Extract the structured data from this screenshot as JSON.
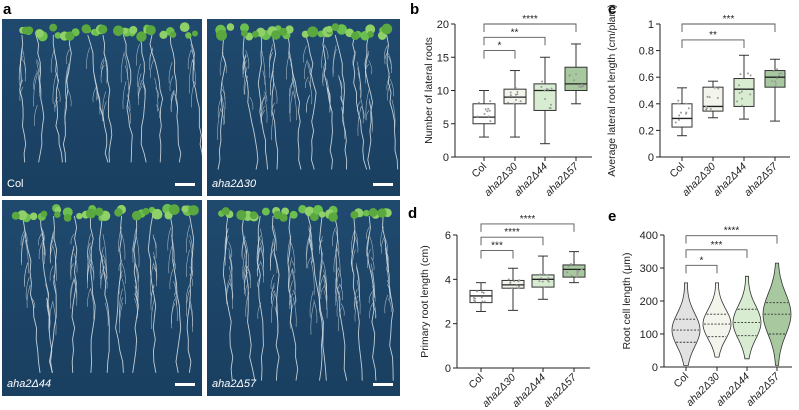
{
  "panel_labels": [
    "a",
    "b",
    "c",
    "d",
    "e"
  ],
  "photos": [
    {
      "genotype": "Col",
      "italic": false
    },
    {
      "genotype": "aha2Δ30",
      "italic": true
    },
    {
      "genotype": "aha2Δ44",
      "italic": true
    },
    {
      "genotype": "aha2Δ57",
      "italic": true
    }
  ],
  "colors": {
    "Col": "#ffffff",
    "aha2Δ30": "#f3f5ec",
    "aha2Δ44": "#d7ecd0",
    "aha2Δ57": "#a8c8a0",
    "photo_bg": "#1d4567"
  },
  "chart_data": [
    {
      "panel": "b",
      "type": "box",
      "ylabel": "Number of lateral roots",
      "categories": [
        "Col",
        "aha2Δ30",
        "aha2Δ44",
        "aha2Δ57"
      ],
      "ylim": [
        0,
        20
      ],
      "yticks": [
        "0",
        "5",
        "10",
        "15",
        "20"
      ],
      "ytick_values": [
        0,
        5,
        10,
        15,
        20
      ],
      "series": [
        {
          "name": "Col",
          "min": 3,
          "q1": 5,
          "median": 6,
          "q3": 8,
          "max": 10
        },
        {
          "name": "aha2Δ30",
          "min": 3,
          "q1": 8,
          "median": 9,
          "q3": 10.2,
          "max": 13
        },
        {
          "name": "aha2Δ44",
          "min": 2,
          "q1": 7,
          "median": 10,
          "q3": 11,
          "max": 15
        },
        {
          "name": "aha2Δ57",
          "min": 8,
          "q1": 10,
          "median": 11,
          "q3": 13.5,
          "max": 17
        }
      ],
      "significance": [
        {
          "from": "Col",
          "to": "aha2Δ30",
          "label": "*",
          "y": 16
        },
        {
          "from": "Col",
          "to": "aha2Δ44",
          "label": "**",
          "y": 18
        },
        {
          "from": "Col",
          "to": "aha2Δ57",
          "label": "****",
          "y": 20
        }
      ]
    },
    {
      "panel": "c",
      "type": "box",
      "ylabel": "Average lateral root length (cm/plant)",
      "categories": [
        "Col",
        "aha2Δ30",
        "aha2Δ44",
        "aha2Δ57"
      ],
      "ylim": [
        0,
        1
      ],
      "yticks": [
        "0",
        "0.2",
        "0.4",
        "0.6",
        "0.8",
        "1"
      ],
      "ytick_values": [
        0,
        0.2,
        0.4,
        0.6,
        0.8,
        1
      ],
      "series": [
        {
          "name": "Col",
          "min": 0.16,
          "q1": 0.225,
          "median": 0.29,
          "q3": 0.4,
          "max": 0.52
        },
        {
          "name": "aha2Δ30",
          "min": 0.295,
          "q1": 0.345,
          "median": 0.38,
          "q3": 0.525,
          "max": 0.57
        },
        {
          "name": "aha2Δ44",
          "min": 0.285,
          "q1": 0.38,
          "median": 0.51,
          "q3": 0.59,
          "max": 0.765
        },
        {
          "name": "aha2Δ57",
          "min": 0.27,
          "q1": 0.525,
          "median": 0.6,
          "q3": 0.65,
          "max": 0.735
        }
      ],
      "significance": [
        {
          "from": "Col",
          "to": "aha2Δ44",
          "label": "**",
          "y": 0.88
        },
        {
          "from": "Col",
          "to": "aha2Δ57",
          "label": "***",
          "y": 1.0
        }
      ]
    },
    {
      "panel": "d",
      "type": "box",
      "ylabel": "Primary root length (cm)",
      "categories": [
        "Col",
        "aha2Δ30",
        "aha2Δ44",
        "aha2Δ57"
      ],
      "ylim": [
        0,
        6
      ],
      "yticks": [
        "0",
        "2",
        "4",
        "6"
      ],
      "ytick_values": [
        0,
        2,
        4,
        6
      ],
      "series": [
        {
          "name": "Col",
          "min": 2.55,
          "q1": 2.95,
          "median": 3.25,
          "q3": 3.5,
          "max": 3.85
        },
        {
          "name": "aha2Δ30",
          "min": 2.6,
          "q1": 3.6,
          "median": 3.75,
          "q3": 3.95,
          "max": 4.5
        },
        {
          "name": "aha2Δ44",
          "min": 3.1,
          "q1": 3.65,
          "median": 4.0,
          "q3": 4.2,
          "max": 5.05
        },
        {
          "name": "aha2Δ57",
          "min": 3.85,
          "q1": 4.1,
          "median": 4.45,
          "q3": 4.65,
          "max": 5.25
        }
      ],
      "significance": [
        {
          "from": "Col",
          "to": "aha2Δ30",
          "label": "***",
          "y": 5.3
        },
        {
          "from": "Col",
          "to": "aha2Δ44",
          "label": "****",
          "y": 5.9
        },
        {
          "from": "Col",
          "to": "aha2Δ57",
          "label": "****",
          "y": 6.5
        }
      ]
    },
    {
      "panel": "e",
      "type": "violin",
      "ylabel": "Root cell length (μm)",
      "categories": [
        "Col",
        "aha2Δ30",
        "aha2Δ44",
        "aha2Δ57"
      ],
      "ylim": [
        0,
        400
      ],
      "yticks": [
        "0",
        "100",
        "200",
        "300",
        "400"
      ],
      "ytick_values": [
        0,
        100,
        200,
        300,
        400
      ],
      "series": [
        {
          "name": "Col",
          "min": 5,
          "q1": 75,
          "median": 112,
          "q3": 145,
          "max": 255
        },
        {
          "name": "aha2Δ30",
          "min": 30,
          "q1": 92,
          "median": 130,
          "q3": 160,
          "max": 255
        },
        {
          "name": "aha2Δ44",
          "min": 25,
          "q1": 95,
          "median": 135,
          "q3": 175,
          "max": 275
        },
        {
          "name": "aha2Δ57",
          "min": 5,
          "q1": 100,
          "median": 160,
          "q3": 195,
          "max": 315
        }
      ],
      "significance": [
        {
          "from": "Col",
          "to": "aha2Δ30",
          "label": "*",
          "y": 308
        },
        {
          "from": "Col",
          "to": "aha2Δ44",
          "label": "***",
          "y": 355
        },
        {
          "from": "Col",
          "to": "aha2Δ57",
          "label": "****",
          "y": 398
        }
      ]
    }
  ]
}
